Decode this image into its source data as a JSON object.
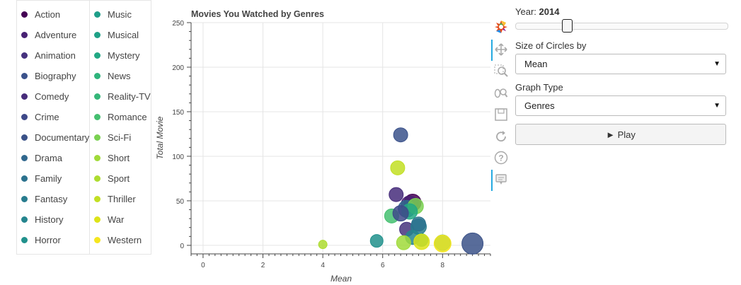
{
  "chart_data": {
    "type": "scatter",
    "title": "Movies You Watched by Genres",
    "xlabel": "Mean",
    "ylabel": "Total Movie",
    "xlim": [
      -0.4,
      9.6
    ],
    "ylim": [
      -8,
      250
    ],
    "x_ticks": [
      0,
      2,
      4,
      6,
      8
    ],
    "y_ticks": [
      0,
      50,
      100,
      150,
      200,
      250
    ],
    "grid": true,
    "legend": "left",
    "points": [
      {
        "genre": "Biography",
        "x": 6.6,
        "y": 124,
        "size": 10,
        "color": "#3b528b"
      },
      {
        "genre": "Thriller",
        "x": 6.5,
        "y": 87,
        "size": 10,
        "color": "#c2df23"
      },
      {
        "genre": "Comedy",
        "x": 6.45,
        "y": 57,
        "size": 10,
        "color": "#472d7b"
      },
      {
        "genre": "Action",
        "x": 7.0,
        "y": 48,
        "size": 12,
        "color": "#440154"
      },
      {
        "genre": "Adventure",
        "x": 6.9,
        "y": 46,
        "size": 12,
        "color": "#482173"
      },
      {
        "genre": "Drama",
        "x": 6.8,
        "y": 41,
        "size": 12,
        "color": "#31688e"
      },
      {
        "genre": "Sci-Fi",
        "x": 7.1,
        "y": 44,
        "size": 11,
        "color": "#7ad151"
      },
      {
        "genre": "Mystery",
        "x": 6.9,
        "y": 38,
        "size": 11,
        "color": "#22a884"
      },
      {
        "genre": "Romance",
        "x": 6.3,
        "y": 33,
        "size": 10,
        "color": "#44bf70"
      },
      {
        "genre": "Crime",
        "x": 6.6,
        "y": 36,
        "size": 11,
        "color": "#3e4989"
      },
      {
        "genre": "Animation",
        "x": 6.8,
        "y": 18,
        "size": 10,
        "color": "#46327e"
      },
      {
        "genre": "Fantasy",
        "x": 7.2,
        "y": 21,
        "size": 11,
        "color": "#287c8e"
      },
      {
        "genre": "Family",
        "x": 7.2,
        "y": 24,
        "size": 10,
        "color": "#2c728e"
      },
      {
        "genre": "History",
        "x": 7.0,
        "y": 9,
        "size": 10,
        "color": "#25858e"
      },
      {
        "genre": "Horror",
        "x": 5.8,
        "y": 5,
        "size": 9,
        "color": "#21918c"
      },
      {
        "genre": "Music",
        "x": 7.3,
        "y": 6,
        "size": 9,
        "color": "#1f9e89"
      },
      {
        "genre": "Musical",
        "x": 8.0,
        "y": 3,
        "size": 11,
        "color": "#1fa187"
      },
      {
        "genre": "Short",
        "x": 6.7,
        "y": 3,
        "size": 10,
        "color": "#a0da39"
      },
      {
        "genre": "Sport",
        "x": 4.0,
        "y": 1,
        "size": 6,
        "color": "#addc30"
      },
      {
        "genre": "War",
        "x": 7.3,
        "y": 4,
        "size": 11,
        "color": "#dde318"
      },
      {
        "genre": "Western",
        "x": 8.0,
        "y": 2,
        "size": 12,
        "color": "#f5e61f"
      },
      {
        "genre": "Documentary",
        "x": 9.0,
        "y": 2,
        "size": 15,
        "color": "#3b5288"
      }
    ]
  },
  "legend": {
    "col1": [
      {
        "label": "Action",
        "color": "#440154"
      },
      {
        "label": "Adventure",
        "color": "#482173"
      },
      {
        "label": "Animation",
        "color": "#46327e"
      },
      {
        "label": "Biography",
        "color": "#3b528b"
      },
      {
        "label": "Comedy",
        "color": "#472d7b"
      },
      {
        "label": "Crime",
        "color": "#3e4989"
      },
      {
        "label": "Documentary",
        "color": "#3b5288"
      },
      {
        "label": "Drama",
        "color": "#31688e"
      },
      {
        "label": "Family",
        "color": "#2c728e"
      },
      {
        "label": "Fantasy",
        "color": "#287c8e"
      },
      {
        "label": "History",
        "color": "#25858e"
      },
      {
        "label": "Horror",
        "color": "#21918c"
      }
    ],
    "col2": [
      {
        "label": "Music",
        "color": "#1f9e89"
      },
      {
        "label": "Musical",
        "color": "#1fa187"
      },
      {
        "label": "Mystery",
        "color": "#22a884"
      },
      {
        "label": "News",
        "color": "#2fb47c"
      },
      {
        "label": "Reality-TV",
        "color": "#35b779"
      },
      {
        "label": "Romance",
        "color": "#44bf70"
      },
      {
        "label": "Sci-Fi",
        "color": "#7ad151"
      },
      {
        "label": "Short",
        "color": "#a0da39"
      },
      {
        "label": "Sport",
        "color": "#addc30"
      },
      {
        "label": "Thriller",
        "color": "#c2df23"
      },
      {
        "label": "War",
        "color": "#dde318"
      },
      {
        "label": "Western",
        "color": "#f5e61f"
      }
    ]
  },
  "toolbar": {
    "tools": [
      "bokeh-logo-icon",
      "pan-icon",
      "box-zoom-icon",
      "wheel-zoom-icon",
      "save-icon",
      "reset-icon",
      "help-icon",
      "hover-icon"
    ]
  },
  "controls": {
    "year_label": "Year:",
    "year_value": "2014",
    "year_fraction": 0.22,
    "size_label": "Size of Circles by",
    "size_value": "Mean",
    "graph_type_label": "Graph Type",
    "graph_type_value": "Genres",
    "play_label": "► Play"
  }
}
